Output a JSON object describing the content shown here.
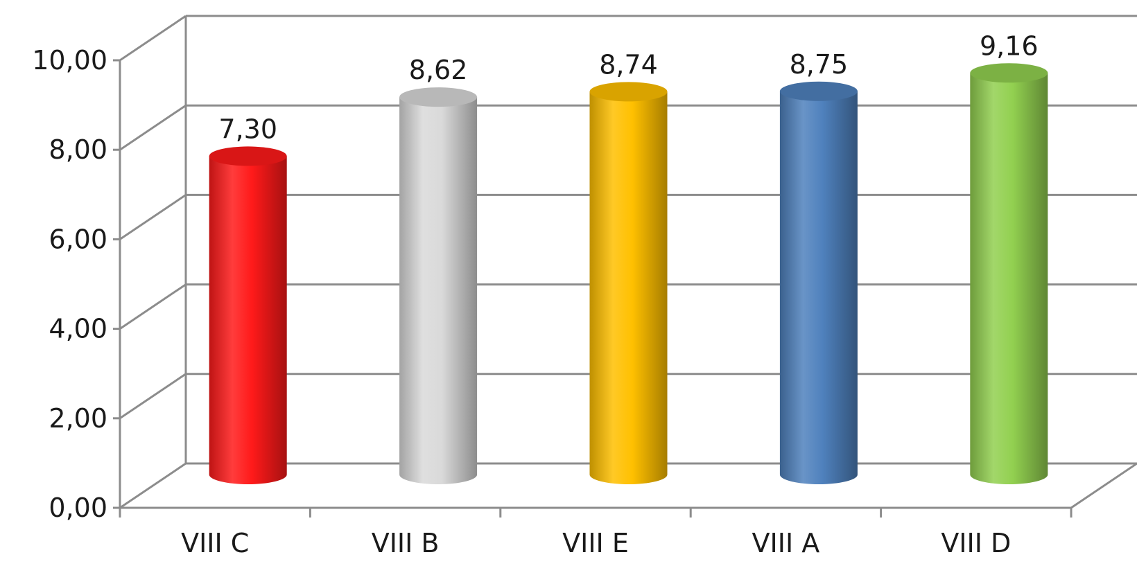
{
  "chart_data": {
    "type": "bar",
    "style": "3d-cylinder",
    "categories": [
      "VIII C",
      "VIII B",
      "VIII E",
      "VIII A",
      "VIII D"
    ],
    "values": [
      7.3,
      8.62,
      8.74,
      8.75,
      9.16
    ],
    "value_labels": [
      "7,30",
      "8,62",
      "8,74",
      "8,75",
      "9,16"
    ],
    "colors": [
      "#ff1a1a",
      "#d9d9d9",
      "#ffc000",
      "#4f81bd",
      "#92d050"
    ],
    "ylim": [
      0,
      10
    ],
    "yticks": [
      0,
      2,
      4,
      6,
      8,
      10
    ],
    "ytick_labels": [
      "0,00",
      "2,00",
      "4,00",
      "6,00",
      "8,00",
      "10,00"
    ],
    "grid": true,
    "legend": "none"
  }
}
